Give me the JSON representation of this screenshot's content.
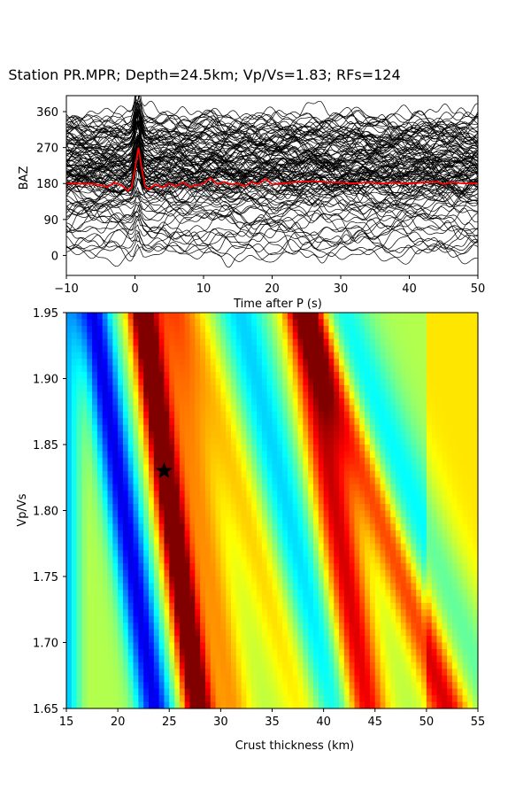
{
  "title": "Station PR.MPR; Depth=24.5km; Vp/Vs=1.83; RFs=124",
  "top_axes": {
    "ylabel": "BAZ",
    "xlabel": "Time after P (s)",
    "xticks": [
      "−10",
      "0",
      "10",
      "20",
      "30",
      "40",
      "50"
    ],
    "yticks": [
      "0",
      "90",
      "180",
      "270",
      "360"
    ]
  },
  "bottom_axes": {
    "ylabel": "Vp/Vs",
    "xlabel": "Crust thickness (km)",
    "xticks": [
      "15",
      "20",
      "25",
      "30",
      "35",
      "40",
      "45",
      "50",
      "55"
    ],
    "yticks": [
      "1.65",
      "1.70",
      "1.75",
      "1.80",
      "1.85",
      "1.90",
      "1.95"
    ]
  },
  "chart_data": [
    {
      "type": "line",
      "panel": "receiver-functions",
      "xlabel": "Time after P (s)",
      "ylabel": "BAZ",
      "xlim": [
        -10,
        50
      ],
      "ylim": [
        -50,
        400
      ],
      "xticks": [
        -10,
        0,
        10,
        20,
        30,
        40,
        50
      ],
      "yticks": [
        0,
        90,
        180,
        270,
        360
      ],
      "trace_count": 124,
      "trace_color": "#000000",
      "stack_color": "#ff0000",
      "stack_baseline": 180,
      "stack": {
        "x": [
          -10,
          -6,
          -4,
          -3,
          -2,
          -1,
          -0.5,
          0,
          0.5,
          1,
          1.5,
          2,
          3,
          4,
          5,
          6,
          7,
          8,
          9,
          10,
          11,
          12,
          13,
          14,
          15,
          16,
          17,
          18,
          19,
          20,
          22,
          24,
          26,
          28,
          30,
          32,
          34,
          36,
          38,
          40,
          42,
          44,
          45,
          46,
          48,
          50
        ],
        "y": [
          180,
          179,
          172,
          182,
          176,
          162,
          170,
          215,
          270,
          215,
          172,
          165,
          178,
          170,
          180,
          173,
          183,
          172,
          176,
          180,
          194,
          178,
          184,
          178,
          180,
          173,
          184,
          178,
          192,
          178,
          181,
          184,
          186,
          183,
          182,
          180,
          183,
          180,
          182,
          180,
          182,
          184,
          178,
          183,
          180,
          181
        ]
      },
      "grid": false
    },
    {
      "type": "heatmap",
      "panel": "h-kappa-stack",
      "xlabel": "Crust thickness (km)",
      "ylabel": "Vp/Vs",
      "xlim": [
        15,
        55
      ],
      "ylim": [
        1.65,
        1.95
      ],
      "xticks": [
        15,
        20,
        25,
        30,
        35,
        40,
        45,
        50,
        55
      ],
      "yticks": [
        1.65,
        1.7,
        1.75,
        1.8,
        1.85,
        1.9,
        1.95
      ],
      "colormap": "jet",
      "grid_thickness_steps": 80,
      "grid_vpvs_steps": 60,
      "best_fit": {
        "thickness": 24.5,
        "vpvs": 1.83,
        "marker": "star",
        "color": "#000000"
      },
      "grid": false
    }
  ]
}
